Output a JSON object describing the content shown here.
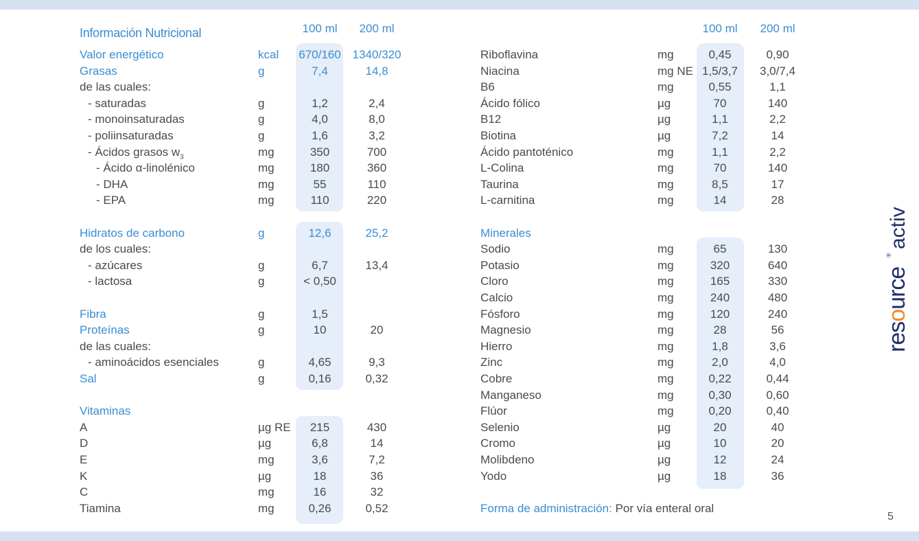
{
  "colors": {
    "accent": "#3a8dd2",
    "text": "#4a4a4a",
    "highlight": "#e5eef9",
    "band": "#d5e1f1",
    "logo_blue": "#1e2f6b",
    "logo_orange": "#f08a24"
  },
  "title": "Información Nutricional",
  "col_100": "100 ml",
  "col_200": "200 ml",
  "left_rows": [
    {
      "row": 0,
      "label": "Valor energético",
      "unit": "kcal",
      "v100": "670/160",
      "v200": "1340/320",
      "blue": true,
      "blue_values": true
    },
    {
      "row": 1,
      "label": "Grasas",
      "unit": "g",
      "v100": "7,4",
      "v200": "14,8",
      "blue": true,
      "blue_values": true
    },
    {
      "row": 2,
      "label": "de las cuales:"
    },
    {
      "row": 3,
      "label": "- saturadas",
      "indent": 1,
      "unit": "g",
      "v100": "1,2",
      "v200": "2,4"
    },
    {
      "row": 4,
      "label": "- monoinsaturadas",
      "indent": 1,
      "unit": "g",
      "v100": "4,0",
      "v200": "8,0"
    },
    {
      "row": 5,
      "label": "- poliinsaturadas",
      "indent": 1,
      "unit": "g",
      "v100": "1,6",
      "v200": "3,2"
    },
    {
      "row": 6,
      "label": "- Ácidos grasos w",
      "sub": "3",
      "indent": 1,
      "unit": "mg",
      "v100": "350",
      "v200": "700"
    },
    {
      "row": 7,
      "label": "- Ácido α-linolénico",
      "indent": 2,
      "unit": "mg",
      "v100": "180",
      "v200": "360"
    },
    {
      "row": 8,
      "label": "- DHA",
      "indent": 2,
      "unit": "mg",
      "v100": "55",
      "v200": "110"
    },
    {
      "row": 9,
      "label": "- EPA",
      "indent": 2,
      "unit": "mg",
      "v100": "110",
      "v200": "220"
    },
    {
      "row": 11,
      "label": "Hidratos de carbono",
      "unit": "g",
      "v100": "12,6",
      "v200": "25,2",
      "blue": true,
      "blue_values": true
    },
    {
      "row": 12,
      "label": "de los cuales:"
    },
    {
      "row": 13,
      "label": "- azúcares",
      "indent": 1,
      "unit": "g",
      "v100": "6,7",
      "v200": "13,4"
    },
    {
      "row": 14,
      "label": "- lactosa",
      "indent": 1,
      "unit": "g",
      "v100": "< 0,50"
    },
    {
      "row": 16,
      "label": "Fibra",
      "unit": "g",
      "v100": "1,5",
      "blue": true
    },
    {
      "row": 17,
      "label": "Proteínas",
      "unit": "g",
      "v100": "10",
      "v200": "20",
      "blue": true
    },
    {
      "row": 18,
      "label": "de las cuales:"
    },
    {
      "row": 19,
      "label": "- aminoácidos esenciales",
      "indent": 1,
      "unit": "g",
      "v100": "4,65",
      "v200": "9,3"
    },
    {
      "row": 20,
      "label": "Sal",
      "unit": "g",
      "v100": "0,16",
      "v200": "0,32",
      "blue": true
    },
    {
      "row": 22,
      "label": "Vitaminas",
      "blue": true
    },
    {
      "row": 23,
      "label": "A",
      "unit": "µg RE",
      "v100": "215",
      "v200": "430"
    },
    {
      "row": 24,
      "label": "D",
      "unit": "µg",
      "v100": "6,8",
      "v200": "14"
    },
    {
      "row": 25,
      "label": "E",
      "unit": "mg",
      "v100": "3,6",
      "v200": "7,2"
    },
    {
      "row": 26,
      "label": "K",
      "unit": "µg",
      "v100": "18",
      "v200": "36"
    },
    {
      "row": 27,
      "label": "C",
      "unit": "mg",
      "v100": "16",
      "v200": "32"
    },
    {
      "row": 28,
      "label": "Tiamina",
      "unit": "mg",
      "v100": "0,26",
      "v200": "0,52"
    }
  ],
  "right_rows": [
    {
      "row": 0,
      "label": "Riboflavina",
      "unit": "mg",
      "v100": "0,45",
      "v200": "0,90"
    },
    {
      "row": 1,
      "label": "Niacina",
      "unit": "mg NE",
      "v100": "1,5/3,7",
      "v200": "3,0/7,4"
    },
    {
      "row": 2,
      "label": "B6",
      "unit": "mg",
      "v100": "0,55",
      "v200": "1,1"
    },
    {
      "row": 3,
      "label": "Ácido fólico",
      "unit": "µg",
      "v100": "70",
      "v200": "140"
    },
    {
      "row": 4,
      "label": "B12",
      "unit": "µg",
      "v100": "1,1",
      "v200": "2,2"
    },
    {
      "row": 5,
      "label": "Biotina",
      "unit": "µg",
      "v100": "7,2",
      "v200": "14"
    },
    {
      "row": 6,
      "label": "Ácido pantoténico",
      "unit": "mg",
      "v100": "1,1",
      "v200": "2,2"
    },
    {
      "row": 7,
      "label": "L-Colina",
      "unit": "mg",
      "v100": "70",
      "v200": "140"
    },
    {
      "row": 8,
      "label": "Taurina",
      "unit": "mg",
      "v100": "8,5",
      "v200": "17"
    },
    {
      "row": 9,
      "label": "L-carnitina",
      "unit": "mg",
      "v100": "14",
      "v200": "28"
    },
    {
      "row": 11,
      "label": "Minerales",
      "blue": true
    },
    {
      "row": 12,
      "label": "Sodio",
      "unit": "mg",
      "v100": "65",
      "v200": "130"
    },
    {
      "row": 13,
      "label": "Potasio",
      "unit": "mg",
      "v100": "320",
      "v200": "640"
    },
    {
      "row": 14,
      "label": "Cloro",
      "unit": "mg",
      "v100": "165",
      "v200": "330"
    },
    {
      "row": 15,
      "label": "Calcio",
      "unit": "mg",
      "v100": "240",
      "v200": "480"
    },
    {
      "row": 16,
      "label": "Fósforo",
      "unit": "mg",
      "v100": "120",
      "v200": "240"
    },
    {
      "row": 17,
      "label": "Magnesio",
      "unit": "mg",
      "v100": "28",
      "v200": "56"
    },
    {
      "row": 18,
      "label": "Hierro",
      "unit": "mg",
      "v100": "1,8",
      "v200": "3,6"
    },
    {
      "row": 19,
      "label": "Zinc",
      "unit": "mg",
      "v100": "2,0",
      "v200": "4,0"
    },
    {
      "row": 20,
      "label": "Cobre",
      "unit": "mg",
      "v100": "0,22",
      "v200": "0,44"
    },
    {
      "row": 21,
      "label": "Manganeso",
      "unit": "mg",
      "v100": "0,30",
      "v200": "0,60"
    },
    {
      "row": 22,
      "label": "Flúor",
      "unit": "mg",
      "v100": "0,20",
      "v200": "0,40"
    },
    {
      "row": 23,
      "label": "Selenio",
      "unit": "µg",
      "v100": "20",
      "v200": "40"
    },
    {
      "row": 24,
      "label": "Cromo",
      "unit": "µg",
      "v100": "10",
      "v200": "20"
    },
    {
      "row": 25,
      "label": "Molibdeno",
      "unit": "µg",
      "v100": "12",
      "v200": "24"
    },
    {
      "row": 26,
      "label": "Yodo",
      "unit": "µg",
      "v100": "18",
      "v200": "36"
    }
  ],
  "administration": {
    "label": "Forma de administración:",
    "value": "Por vía enteral oral"
  },
  "logo": {
    "text": "resource® activ"
  },
  "page_number": "5"
}
